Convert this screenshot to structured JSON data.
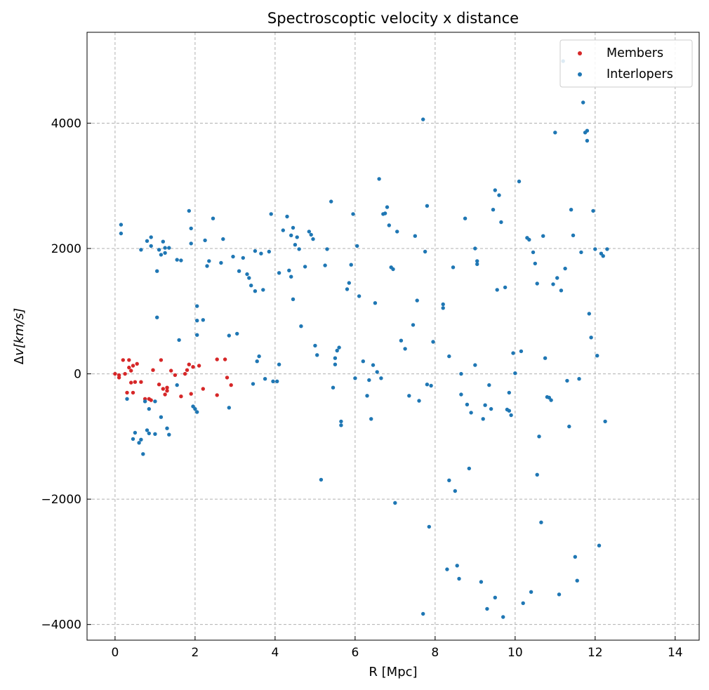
{
  "colors": {
    "members": "#d62728",
    "interlopers": "#1f77b4"
  },
  "chart_data": {
    "type": "scatter",
    "title": "Spectroscoptic velocity x distance",
    "xlabel": "R [Mpc]",
    "ylabel_prefix": "Δ",
    "ylabel_var": "v",
    "ylabel_unit": "[km/s]",
    "xlim": [
      -0.7,
      14.6
    ],
    "ylim": [
      -4250,
      5450
    ],
    "xticks": [
      0,
      2,
      4,
      6,
      8,
      10,
      12,
      14
    ],
    "yticks": [
      -4000,
      -2000,
      0,
      2000,
      4000
    ],
    "xtick_labels": [
      "0",
      "2",
      "4",
      "6",
      "8",
      "10",
      "12",
      "14"
    ],
    "ytick_labels": [
      "−4000",
      "−2000",
      "0",
      "2000",
      "4000"
    ],
    "grid": true,
    "legend_position": "upper right",
    "series": [
      {
        "name": "Members",
        "color": "#d62728",
        "points": [
          [
            0.0,
            0
          ],
          [
            0.1,
            -60
          ],
          [
            0.1,
            -20
          ],
          [
            0.2,
            220
          ],
          [
            0.25,
            0
          ],
          [
            0.3,
            -300
          ],
          [
            0.35,
            100
          ],
          [
            0.35,
            220
          ],
          [
            0.4,
            50
          ],
          [
            0.4,
            -140
          ],
          [
            0.45,
            130
          ],
          [
            0.45,
            -300
          ],
          [
            0.5,
            -130
          ],
          [
            0.55,
            160
          ],
          [
            0.65,
            -130
          ],
          [
            0.75,
            -400
          ],
          [
            0.85,
            -400
          ],
          [
            0.9,
            -420
          ],
          [
            0.95,
            60
          ],
          [
            1.1,
            -170
          ],
          [
            1.15,
            220
          ],
          [
            1.2,
            -240
          ],
          [
            1.25,
            -330
          ],
          [
            1.3,
            -220
          ],
          [
            1.3,
            -270
          ],
          [
            1.4,
            50
          ],
          [
            1.5,
            -20
          ],
          [
            1.65,
            -360
          ],
          [
            1.75,
            0
          ],
          [
            1.8,
            60
          ],
          [
            1.85,
            150
          ],
          [
            1.9,
            -320
          ],
          [
            1.95,
            110
          ],
          [
            2.1,
            130
          ],
          [
            2.2,
            -240
          ],
          [
            2.55,
            230
          ],
          [
            2.55,
            -340
          ],
          [
            2.75,
            230
          ],
          [
            2.8,
            -60
          ],
          [
            2.9,
            -180
          ]
        ]
      },
      {
        "name": "Interlopers",
        "color": "#1f77b4",
        "points": [
          [
            0.15,
            2380
          ],
          [
            0.15,
            2240
          ],
          [
            0.3,
            -400
          ],
          [
            0.45,
            -1040
          ],
          [
            0.5,
            -940
          ],
          [
            0.6,
            -1100
          ],
          [
            0.65,
            -1050
          ],
          [
            0.65,
            1980
          ],
          [
            0.7,
            -1280
          ],
          [
            0.75,
            -440
          ],
          [
            0.8,
            -900
          ],
          [
            0.8,
            2120
          ],
          [
            0.85,
            -950
          ],
          [
            0.85,
            -560
          ],
          [
            0.9,
            2180
          ],
          [
            0.9,
            2040
          ],
          [
            1.0,
            -960
          ],
          [
            1.0,
            -440
          ],
          [
            1.05,
            1640
          ],
          [
            1.05,
            900
          ],
          [
            1.1,
            1980
          ],
          [
            1.15,
            1900
          ],
          [
            1.15,
            -690
          ],
          [
            1.2,
            2110
          ],
          [
            1.25,
            1930
          ],
          [
            1.25,
            2010
          ],
          [
            1.3,
            -870
          ],
          [
            1.35,
            -970
          ],
          [
            1.35,
            2010
          ],
          [
            1.55,
            1820
          ],
          [
            1.55,
            -180
          ],
          [
            1.6,
            540
          ],
          [
            1.65,
            1810
          ],
          [
            1.85,
            2600
          ],
          [
            1.9,
            2320
          ],
          [
            1.9,
            2080
          ],
          [
            1.95,
            -520
          ],
          [
            2.0,
            -560
          ],
          [
            2.05,
            1080
          ],
          [
            2.05,
            850
          ],
          [
            2.05,
            -610
          ],
          [
            2.05,
            620
          ],
          [
            2.2,
            860
          ],
          [
            2.25,
            2130
          ],
          [
            2.3,
            1720
          ],
          [
            2.35,
            1800
          ],
          [
            2.45,
            2480
          ],
          [
            2.65,
            1770
          ],
          [
            2.7,
            2150
          ],
          [
            2.85,
            610
          ],
          [
            2.85,
            -540
          ],
          [
            2.95,
            1870
          ],
          [
            3.05,
            640
          ],
          [
            3.1,
            1640
          ],
          [
            3.2,
            1850
          ],
          [
            3.3,
            1590
          ],
          [
            3.35,
            1530
          ],
          [
            3.4,
            1410
          ],
          [
            3.45,
            -160
          ],
          [
            3.5,
            1320
          ],
          [
            3.5,
            1960
          ],
          [
            3.55,
            200
          ],
          [
            3.6,
            280
          ],
          [
            3.65,
            1920
          ],
          [
            3.7,
            1340
          ],
          [
            3.75,
            -80
          ],
          [
            3.85,
            1950
          ],
          [
            3.9,
            2550
          ],
          [
            3.95,
            -120
          ],
          [
            4.05,
            -120
          ],
          [
            4.1,
            150
          ],
          [
            4.1,
            1610
          ],
          [
            4.2,
            2290
          ],
          [
            4.3,
            2510
          ],
          [
            4.35,
            1650
          ],
          [
            4.4,
            1550
          ],
          [
            4.4,
            2210
          ],
          [
            4.45,
            1190
          ],
          [
            4.45,
            2330
          ],
          [
            4.5,
            2060
          ],
          [
            4.55,
            2180
          ],
          [
            4.6,
            1990
          ],
          [
            4.65,
            760
          ],
          [
            4.75,
            1710
          ],
          [
            4.85,
            2270
          ],
          [
            4.9,
            2220
          ],
          [
            4.95,
            2150
          ],
          [
            5.0,
            450
          ],
          [
            5.05,
            300
          ],
          [
            5.15,
            -1690
          ],
          [
            5.25,
            1730
          ],
          [
            5.3,
            1990
          ],
          [
            5.4,
            2750
          ],
          [
            5.45,
            -220
          ],
          [
            5.5,
            150
          ],
          [
            5.5,
            250
          ],
          [
            5.55,
            370
          ],
          [
            5.6,
            420
          ],
          [
            5.65,
            -760
          ],
          [
            5.65,
            -820
          ],
          [
            5.8,
            1350
          ],
          [
            5.85,
            1450
          ],
          [
            5.9,
            1740
          ],
          [
            5.95,
            2550
          ],
          [
            6.0,
            -70
          ],
          [
            6.05,
            2040
          ],
          [
            6.1,
            1240
          ],
          [
            6.2,
            200
          ],
          [
            6.3,
            -350
          ],
          [
            6.35,
            -100
          ],
          [
            6.4,
            -720
          ],
          [
            6.45,
            140
          ],
          [
            6.5,
            1130
          ],
          [
            6.55,
            30
          ],
          [
            6.6,
            3110
          ],
          [
            6.65,
            -70
          ],
          [
            6.7,
            2550
          ],
          [
            6.75,
            2560
          ],
          [
            6.8,
            2660
          ],
          [
            6.85,
            2370
          ],
          [
            6.9,
            1700
          ],
          [
            6.95,
            1670
          ],
          [
            7.0,
            -2060
          ],
          [
            7.05,
            2270
          ],
          [
            7.15,
            530
          ],
          [
            7.25,
            400
          ],
          [
            7.35,
            -350
          ],
          [
            7.45,
            780
          ],
          [
            7.5,
            2200
          ],
          [
            7.55,
            1170
          ],
          [
            7.6,
            -430
          ],
          [
            7.7,
            4060
          ],
          [
            7.7,
            -3830
          ],
          [
            7.75,
            1950
          ],
          [
            7.8,
            2680
          ],
          [
            7.8,
            -170
          ],
          [
            7.85,
            -2440
          ],
          [
            7.9,
            -190
          ],
          [
            7.95,
            510
          ],
          [
            8.2,
            1110
          ],
          [
            8.2,
            1050
          ],
          [
            8.3,
            -3120
          ],
          [
            8.35,
            -1700
          ],
          [
            8.35,
            280
          ],
          [
            8.45,
            1700
          ],
          [
            8.5,
            -1870
          ],
          [
            8.55,
            -3060
          ],
          [
            8.6,
            -3270
          ],
          [
            8.65,
            -330
          ],
          [
            8.65,
            0
          ],
          [
            8.75,
            2480
          ],
          [
            8.8,
            -490
          ],
          [
            8.85,
            -1510
          ],
          [
            8.9,
            -620
          ],
          [
            9.0,
            140
          ],
          [
            9.0,
            2000
          ],
          [
            9.05,
            1750
          ],
          [
            9.05,
            1800
          ],
          [
            9.15,
            -3320
          ],
          [
            9.2,
            -720
          ],
          [
            9.25,
            -500
          ],
          [
            9.3,
            -3750
          ],
          [
            9.35,
            -180
          ],
          [
            9.4,
            -560
          ],
          [
            9.45,
            2620
          ],
          [
            9.5,
            -3570
          ],
          [
            9.5,
            2930
          ],
          [
            9.55,
            1340
          ],
          [
            9.6,
            2850
          ],
          [
            9.65,
            2420
          ],
          [
            9.7,
            -3880
          ],
          [
            9.75,
            1380
          ],
          [
            9.8,
            -570
          ],
          [
            9.85,
            -590
          ],
          [
            9.85,
            -300
          ],
          [
            9.9,
            -660
          ],
          [
            9.95,
            330
          ],
          [
            10.0,
            10
          ],
          [
            10.1,
            3070
          ],
          [
            10.15,
            360
          ],
          [
            10.2,
            -3660
          ],
          [
            10.3,
            2170
          ],
          [
            10.35,
            2140
          ],
          [
            10.4,
            -3480
          ],
          [
            10.45,
            1940
          ],
          [
            10.5,
            1760
          ],
          [
            10.55,
            -1610
          ],
          [
            10.55,
            1440
          ],
          [
            10.6,
            -1000
          ],
          [
            10.65,
            -2370
          ],
          [
            10.7,
            2200
          ],
          [
            10.75,
            250
          ],
          [
            10.8,
            -370
          ],
          [
            10.85,
            -380
          ],
          [
            10.9,
            -420
          ],
          [
            10.95,
            1430
          ],
          [
            11.0,
            3850
          ],
          [
            11.05,
            1530
          ],
          [
            11.1,
            -3520
          ],
          [
            11.15,
            1330
          ],
          [
            11.2,
            4990
          ],
          [
            11.25,
            1680
          ],
          [
            11.3,
            -110
          ],
          [
            11.35,
            -840
          ],
          [
            11.4,
            2620
          ],
          [
            11.45,
            2210
          ],
          [
            11.5,
            -2920
          ],
          [
            11.55,
            -3300
          ],
          [
            11.6,
            -80
          ],
          [
            11.65,
            1940
          ],
          [
            11.7,
            4330
          ],
          [
            11.75,
            3850
          ],
          [
            11.8,
            3880
          ],
          [
            11.8,
            3720
          ],
          [
            11.85,
            960
          ],
          [
            11.9,
            580
          ],
          [
            11.95,
            2600
          ],
          [
            12.0,
            1990
          ],
          [
            12.05,
            290
          ],
          [
            12.1,
            -2740
          ],
          [
            12.15,
            1920
          ],
          [
            12.2,
            1880
          ],
          [
            12.25,
            -760
          ],
          [
            12.3,
            1990
          ]
        ]
      }
    ]
  }
}
